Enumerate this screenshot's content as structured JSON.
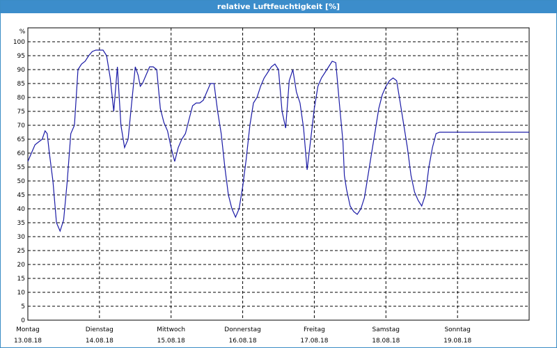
{
  "window": {
    "title": "relative Luftfeuchtigkeit [%]"
  },
  "colors": {
    "title_bar": "#3c8dcb",
    "line": "#1a1aa6",
    "grid": "#000000"
  },
  "chart_data": {
    "type": "line",
    "title": "relative Luftfeuchtigkeit [%]",
    "ylabel": "%",
    "xlabel": "",
    "ylim": [
      0,
      105
    ],
    "yticks": [
      0,
      5,
      10,
      15,
      20,
      25,
      30,
      35,
      40,
      45,
      50,
      55,
      60,
      65,
      70,
      75,
      80,
      85,
      90,
      95,
      100
    ],
    "xlim": [
      0,
      7
    ],
    "grid": true,
    "day_labels": [
      {
        "day": "Montag",
        "date": "13.08.18"
      },
      {
        "day": "Dienstag",
        "date": "14.08.18"
      },
      {
        "day": "Mittwoch",
        "date": "15.08.18"
      },
      {
        "day": "Donnerstag",
        "date": "16.08.18"
      },
      {
        "day": "Freitag",
        "date": "17.08.18"
      },
      {
        "day": "Samstag",
        "date": "18.08.18"
      },
      {
        "day": "Sonntag",
        "date": "19.08.18"
      }
    ],
    "series": [
      {
        "color": "#1a1aa6",
        "x": [
          0.0,
          0.05,
          0.1,
          0.15,
          0.2,
          0.24,
          0.27,
          0.3,
          0.35,
          0.4,
          0.45,
          0.5,
          0.55,
          0.6,
          0.65,
          0.7,
          0.75,
          0.8,
          0.85,
          0.9,
          0.95,
          1.0,
          1.05,
          1.1,
          1.15,
          1.2,
          1.25,
          1.3,
          1.35,
          1.4,
          1.45,
          1.5,
          1.54,
          1.57,
          1.6,
          1.65,
          1.7,
          1.75,
          1.8,
          1.85,
          1.9,
          1.95,
          2.0,
          2.05,
          2.1,
          2.15,
          2.2,
          2.25,
          2.3,
          2.35,
          2.4,
          2.45,
          2.5,
          2.55,
          2.6,
          2.65,
          2.7,
          2.75,
          2.8,
          2.85,
          2.9,
          2.95,
          3.0,
          3.05,
          3.1,
          3.15,
          3.2,
          3.25,
          3.3,
          3.35,
          3.4,
          3.45,
          3.5,
          3.55,
          3.6,
          3.65,
          3.7,
          3.75,
          3.8,
          3.85,
          3.9,
          3.95,
          4.0,
          4.05,
          4.1,
          4.15,
          4.2,
          4.25,
          4.3,
          4.35,
          4.4,
          4.42,
          4.45,
          4.5,
          4.55,
          4.6,
          4.65,
          4.7,
          4.75,
          4.8,
          4.85,
          4.9,
          4.95,
          5.0,
          5.05,
          5.1,
          5.15,
          5.2,
          5.25,
          5.3,
          5.35,
          5.4,
          5.45,
          5.5,
          5.55,
          5.6,
          5.65,
          5.7,
          5.75,
          5.8,
          5.85,
          5.9,
          5.95,
          6.0,
          6.05,
          6.1,
          6.15,
          6.2,
          6.25,
          6.3,
          6.35,
          6.4,
          6.45,
          6.5,
          6.55,
          6.6,
          6.65,
          6.7,
          6.75,
          6.8,
          6.85,
          6.9,
          6.95,
          7.0
        ],
        "y": [
          57,
          60,
          63,
          64,
          65,
          68,
          67,
          60,
          50,
          35,
          32,
          36,
          50,
          67,
          70,
          90,
          92,
          93,
          95,
          96.5,
          97,
          97,
          97,
          95,
          87,
          75,
          91,
          70,
          62,
          65,
          78,
          91,
          88,
          84,
          85,
          88,
          91,
          91,
          90,
          76,
          71,
          68,
          62,
          57,
          62,
          65,
          67,
          72,
          77,
          78,
          78,
          79,
          82,
          85,
          85,
          75,
          67,
          55,
          45,
          40,
          37,
          40,
          48,
          58,
          70,
          78,
          80,
          84,
          87,
          89,
          91,
          92,
          90,
          75,
          69,
          86,
          90,
          82,
          78,
          69,
          54,
          65,
          76,
          84,
          87,
          89,
          91,
          93,
          92.5,
          78,
          64,
          52,
          47,
          41,
          39,
          38,
          40,
          44,
          52,
          60,
          68,
          76,
          81,
          84,
          86,
          87,
          86,
          78,
          70,
          62,
          52,
          46,
          43,
          41,
          45,
          55,
          62,
          67,
          67.5,
          67.5,
          67.5,
          67.5,
          67.5,
          67.5,
          67.5,
          67.5,
          67.5,
          67.5,
          67.5,
          67.5,
          67.5,
          67.5,
          67.5,
          67.5,
          67.5,
          67.5,
          67.5,
          67.5,
          67.5,
          67.5,
          67.5,
          67.5,
          67.5,
          67.5
        ]
      }
    ]
  }
}
